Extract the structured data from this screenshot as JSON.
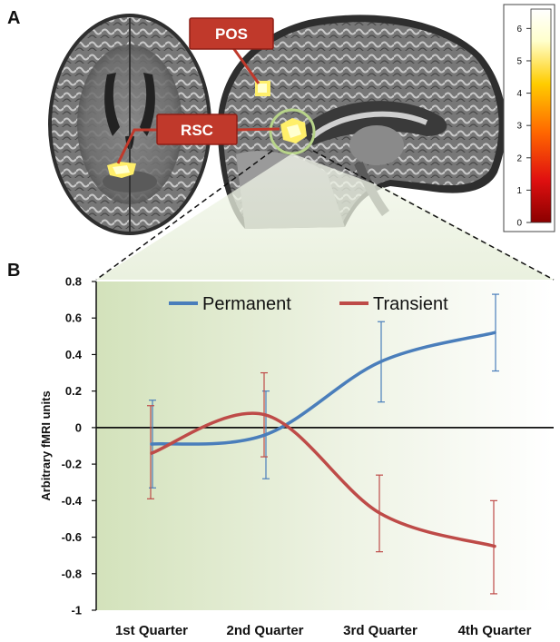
{
  "panels": {
    "a": "A",
    "b": "B"
  },
  "brain": {
    "roi_labels": [
      "POS",
      "RSC"
    ]
  },
  "colorbar": {
    "ticks": [
      "0",
      "1",
      "2",
      "3",
      "4",
      "5",
      "6"
    ],
    "max": 6.6,
    "colors": [
      "#8b0000",
      "#e01010",
      "#ff6600",
      "#ffcc00",
      "#ffffcc",
      "#ffffff"
    ]
  },
  "colors": {
    "permanent": "#4a7ebb",
    "transient": "#be4b48",
    "roi_box": "#c0392b",
    "highlight_ring": "#b8d48a",
    "plot_bg_left": "#d9e6c2",
    "plot_bg_right": "#ffffff"
  },
  "chart_data": {
    "type": "line",
    "title": "",
    "xlabel": "",
    "ylabel": "Arbitrary fMRI units",
    "categories": [
      "1st Quarter",
      "2nd Quarter",
      "3rd Quarter",
      "4th Quarter"
    ],
    "ylim": [
      -1,
      0.8
    ],
    "yticks": [
      "0.8",
      "0.6",
      "0.4",
      "0.2",
      "0",
      "-0.2",
      "-0.4",
      "-0.6",
      "-0.8",
      "-1"
    ],
    "smoothed": true,
    "legend_position": "top",
    "series": [
      {
        "name": "Permanent",
        "values": [
          -0.09,
          -0.04,
          0.36,
          0.52
        ],
        "error_high": [
          0.15,
          0.2,
          0.58,
          0.73
        ],
        "error_low": [
          -0.33,
          -0.28,
          0.14,
          0.31
        ]
      },
      {
        "name": "Transient",
        "values": [
          -0.14,
          0.07,
          -0.47,
          -0.65
        ],
        "error_high": [
          0.12,
          0.3,
          -0.26,
          -0.4
        ],
        "error_low": [
          -0.39,
          -0.16,
          -0.68,
          -0.91
        ]
      }
    ]
  }
}
